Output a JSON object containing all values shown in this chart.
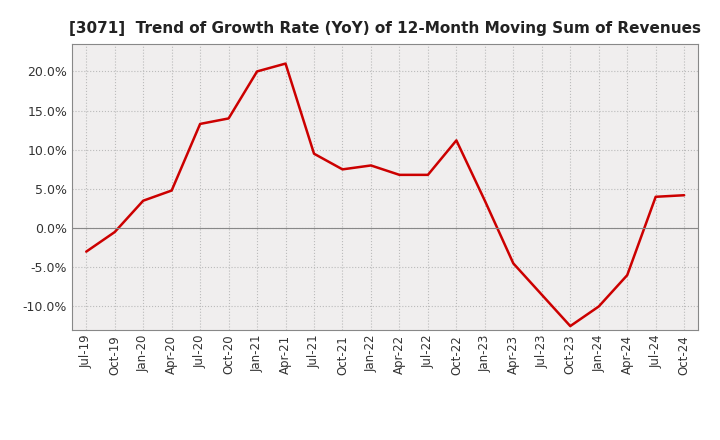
{
  "title": "[3071]  Trend of Growth Rate (YoY) of 12-Month Moving Sum of Revenues",
  "line_color": "#cc0000",
  "background_color": "#ffffff",
  "plot_bg_color": "#f0eeee",
  "grid_color": "#bbbbbb",
  "ylim": [
    -0.13,
    0.235
  ],
  "yticks": [
    -0.1,
    -0.05,
    0.0,
    0.05,
    0.1,
    0.15,
    0.2
  ],
  "values": [
    -0.03,
    -0.005,
    0.035,
    0.048,
    0.133,
    0.14,
    0.2,
    0.21,
    0.095,
    0.075,
    0.08,
    0.068,
    0.068,
    0.112,
    0.035,
    -0.045,
    -0.085,
    -0.125,
    -0.1,
    -0.06,
    0.04,
    0.042
  ],
  "xtick_labels": [
    "Jul-19",
    "Oct-19",
    "Jan-20",
    "Apr-20",
    "Jul-20",
    "Oct-20",
    "Jan-21",
    "Apr-21",
    "Jul-21",
    "Oct-21",
    "Jan-22",
    "Apr-22",
    "Jul-22",
    "Oct-22",
    "Jan-23",
    "Apr-23",
    "Jul-23",
    "Oct-23",
    "Jan-24",
    "Apr-24",
    "Jul-24",
    "Oct-24"
  ],
  "title_fontsize": 11,
  "tick_fontsize": 8.5
}
